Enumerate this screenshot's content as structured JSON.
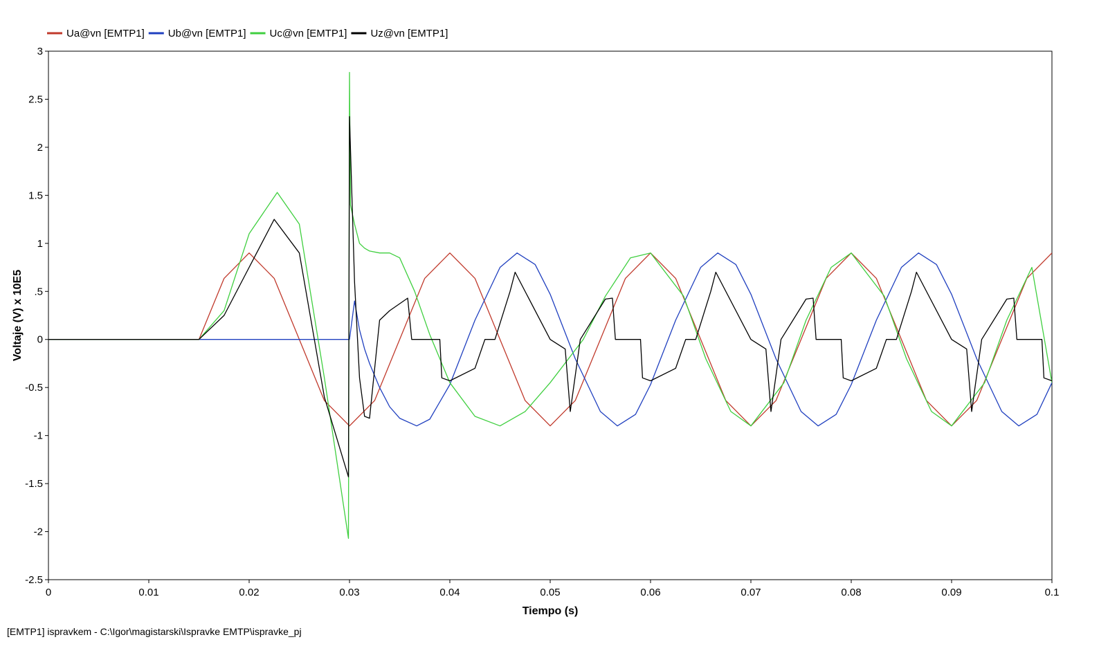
{
  "chart_data": {
    "type": "line",
    "xlabel": "Tiempo (s)",
    "ylabel": "Voltaje (V) x 10E5",
    "xlim": [
      0,
      0.1
    ],
    "ylim": [
      -2.5,
      3
    ],
    "xticks": [
      0,
      0.01,
      0.02,
      0.03,
      0.04,
      0.05,
      0.06,
      0.07,
      0.08,
      0.09,
      0.1
    ],
    "xtick_labels": [
      "0",
      "0.01",
      "0.02",
      "0.03",
      "0.04",
      "0.05",
      "0.06",
      "0.07",
      "0.08",
      "0.09",
      "0.1"
    ],
    "yticks": [
      -2.5,
      -2,
      -1.5,
      -1,
      -0.5,
      0,
      0.5,
      1,
      1.5,
      2,
      2.5,
      3
    ],
    "ytick_labels": [
      "-2.5",
      "-2",
      "-1.5",
      "-1",
      "-0.5",
      "0",
      ".5",
      "1",
      "1.5",
      "2",
      "2.5",
      "3"
    ],
    "grid": false,
    "legend_position": "top-left",
    "series": [
      {
        "name": "Ua@vn [EMTP1]",
        "color": "#c0392b",
        "x": [
          0,
          0.015,
          0.0175,
          0.02,
          0.0225,
          0.025,
          0.0275,
          0.03,
          0.0325,
          0.035,
          0.0375,
          0.04,
          0.0425,
          0.045,
          0.0475,
          0.05,
          0.0525,
          0.055,
          0.0575,
          0.06,
          0.0625,
          0.065,
          0.0675,
          0.07,
          0.0725,
          0.075,
          0.0775,
          0.08,
          0.0825,
          0.085,
          0.0875,
          0.09,
          0.0925,
          0.095,
          0.0975,
          0.1
        ],
        "y": [
          0,
          0,
          0.636,
          0.9,
          0.636,
          0,
          -0.636,
          -0.9,
          -0.636,
          0,
          0.636,
          0.9,
          0.636,
          0,
          -0.636,
          -0.9,
          -0.636,
          0,
          0.636,
          0.9,
          0.636,
          0,
          -0.636,
          -0.9,
          -0.636,
          0,
          0.636,
          0.9,
          0.636,
          0,
          -0.636,
          -0.9,
          -0.636,
          0,
          0.636,
          0.9
        ]
      },
      {
        "name": "Ub@vn [EMTP1]",
        "color": "#1f3fbf",
        "x": [
          0,
          0.03,
          0.0305,
          0.031,
          0.0315,
          0.032,
          0.033,
          0.034,
          0.035,
          0.0367,
          0.038,
          0.04,
          0.0425,
          0.045,
          0.0467,
          0.0485,
          0.05,
          0.0525,
          0.055,
          0.0567,
          0.0585,
          0.06,
          0.0625,
          0.065,
          0.0667,
          0.0685,
          0.07,
          0.0725,
          0.075,
          0.0767,
          0.0785,
          0.08,
          0.0825,
          0.085,
          0.0867,
          0.0885,
          0.09,
          0.0925,
          0.095,
          0.0967,
          0.0985,
          0.1
        ],
        "y": [
          0,
          0,
          0.4,
          0.1,
          -0.1,
          -0.25,
          -0.5,
          -0.7,
          -0.82,
          -0.9,
          -0.83,
          -0.47,
          0.2,
          0.75,
          0.9,
          0.78,
          0.47,
          -0.2,
          -0.75,
          -0.9,
          -0.78,
          -0.47,
          0.2,
          0.75,
          0.9,
          0.78,
          0.47,
          -0.2,
          -0.75,
          -0.9,
          -0.78,
          -0.47,
          0.2,
          0.75,
          0.9,
          0.78,
          0.47,
          -0.2,
          -0.75,
          -0.9,
          -0.78,
          -0.45
        ]
      },
      {
        "name": "Uc@vn [EMTP1]",
        "color": "#3fcf3f",
        "x": [
          0,
          0.015,
          0.0175,
          0.02,
          0.0228,
          0.025,
          0.0275,
          0.0299,
          0.03,
          0.0301,
          0.0305,
          0.031,
          0.0315,
          0.032,
          0.033,
          0.034,
          0.035,
          0.0365,
          0.038,
          0.04,
          0.0425,
          0.045,
          0.0475,
          0.05,
          0.0533,
          0.0555,
          0.058,
          0.06,
          0.0633,
          0.0655,
          0.068,
          0.07,
          0.0733,
          0.0755,
          0.078,
          0.08,
          0.0833,
          0.0855,
          0.088,
          0.09,
          0.0933,
          0.0955,
          0.098,
          0.1
        ],
        "y": [
          0,
          0,
          0.3,
          1.1,
          1.53,
          1.2,
          -0.4,
          -2.07,
          2.78,
          1.4,
          1.2,
          1.0,
          0.95,
          0.92,
          0.9,
          0.9,
          0.85,
          0.5,
          0.05,
          -0.45,
          -0.8,
          -0.9,
          -0.75,
          -0.45,
          0.0,
          0.45,
          0.85,
          0.9,
          0.45,
          -0.2,
          -0.75,
          -0.9,
          -0.45,
          0.2,
          0.75,
          0.9,
          0.45,
          -0.2,
          -0.75,
          -0.9,
          -0.45,
          0.2,
          0.75,
          -0.45
        ]
      },
      {
        "name": "Uz@vn [EMTP1]",
        "color": "#000000",
        "x": [
          0,
          0.015,
          0.0175,
          0.02,
          0.0225,
          0.025,
          0.0275,
          0.0299,
          0.03,
          0.0305,
          0.031,
          0.0315,
          0.032,
          0.033,
          0.034,
          0.0358,
          0.0362,
          0.039,
          0.0392,
          0.04,
          0.0425,
          0.0435,
          0.0445,
          0.046,
          0.0465,
          0.05,
          0.0515,
          0.052,
          0.053,
          0.0555,
          0.0562,
          0.0565,
          0.059,
          0.0592,
          0.06,
          0.0625,
          0.0635,
          0.0645,
          0.066,
          0.0665,
          0.07,
          0.0715,
          0.072,
          0.073,
          0.0755,
          0.0762,
          0.0765,
          0.079,
          0.0792,
          0.08,
          0.0825,
          0.0835,
          0.0845,
          0.086,
          0.0865,
          0.09,
          0.0915,
          0.092,
          0.093,
          0.0955,
          0.0962,
          0.0965,
          0.099,
          0.0992,
          0.1
        ],
        "y": [
          0,
          0,
          0.25,
          0.75,
          1.25,
          0.9,
          -0.6,
          -1.43,
          2.32,
          0.6,
          -0.4,
          -0.8,
          -0.82,
          0.2,
          0.3,
          0.43,
          0.0,
          0.0,
          -0.4,
          -0.43,
          -0.3,
          0.0,
          0.0,
          0.5,
          0.7,
          0.0,
          -0.1,
          -0.75,
          0.0,
          0.42,
          0.43,
          0.0,
          0.0,
          -0.4,
          -0.43,
          -0.3,
          0.0,
          0.0,
          0.5,
          0.7,
          0.0,
          -0.1,
          -0.75,
          0.0,
          0.42,
          0.43,
          0.0,
          0.0,
          -0.4,
          -0.43,
          -0.3,
          0.0,
          0.0,
          0.5,
          0.7,
          0.0,
          -0.1,
          -0.75,
          0.0,
          0.42,
          0.43,
          0.0,
          0.0,
          -0.4,
          -0.43
        ]
      }
    ]
  },
  "footer": {
    "text": "[EMTP1] ispravkem - C:\\Igor\\magistarski\\Ispravke EMTP\\ispravke_pj"
  },
  "colors": {
    "axis": "#000000",
    "background": "#ffffff"
  }
}
